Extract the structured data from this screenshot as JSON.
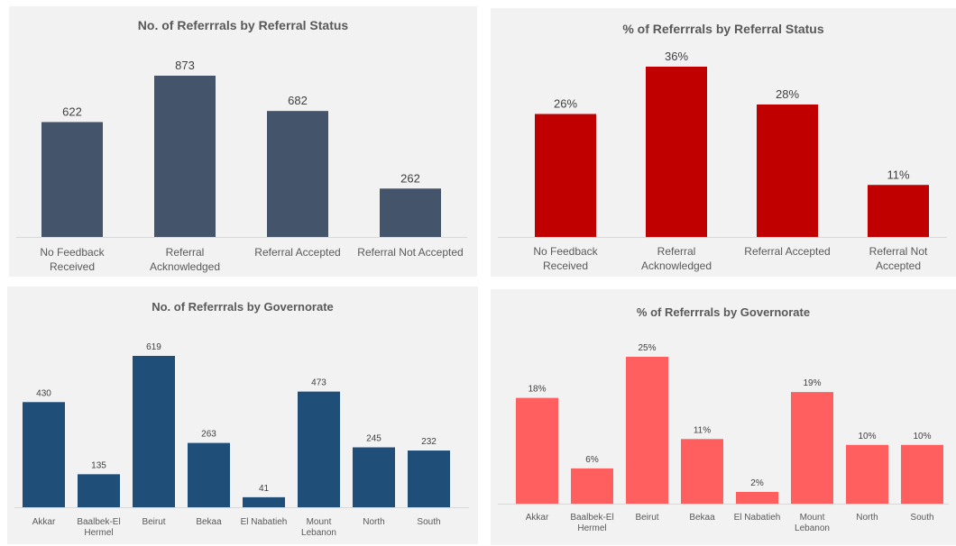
{
  "charts": [
    {
      "chart_data": {
        "type": "bar",
        "title": "No. of Referrrals by Referral Status",
        "categories": [
          [
            "No Feedback",
            "Received"
          ],
          [
            "Referral",
            "Acknowledged"
          ],
          [
            "Referral Accepted"
          ],
          [
            "Referral Not Accepted"
          ]
        ],
        "values": [
          622,
          873,
          682,
          262
        ],
        "labels": [
          "622",
          "873",
          "682",
          "262"
        ],
        "ylim": [
          0,
          873
        ]
      },
      "colors": {
        "bar": "#44546a"
      }
    },
    {
      "chart_data": {
        "type": "bar",
        "title": "% of Referrrals by Referral Status",
        "categories": [
          [
            "No Feedback",
            "Received"
          ],
          [
            "Referral",
            "Acknowledged"
          ],
          [
            "Referral Accepted"
          ],
          [
            "Referral Not",
            "Accepted"
          ]
        ],
        "values": [
          26,
          36,
          28,
          11
        ],
        "labels": [
          "26%",
          "36%",
          "28%",
          "11%"
        ],
        "ylim": [
          0,
          36
        ]
      },
      "colors": {
        "bar": "#c00000"
      }
    },
    {
      "chart_data": {
        "type": "bar",
        "title": "No. of Referrrals by Governorate",
        "categories": [
          [
            "Akkar"
          ],
          [
            "Baalbek-El",
            "Hermel"
          ],
          [
            "Beirut"
          ],
          [
            "Bekaa"
          ],
          [
            "El Nabatieh"
          ],
          [
            "Mount",
            "Lebanon"
          ],
          [
            "North"
          ],
          [
            "South"
          ]
        ],
        "values": [
          430,
          135,
          619,
          263,
          41,
          473,
          245,
          232
        ],
        "labels": [
          "430",
          "135",
          "619",
          "263",
          "41",
          "473",
          "245",
          "232"
        ],
        "ylim": [
          0,
          619
        ]
      },
      "colors": {
        "bar": "#1f4e79"
      }
    },
    {
      "chart_data": {
        "type": "bar",
        "title": "% of Referrrals by Governorate",
        "categories": [
          [
            "Akkar"
          ],
          [
            "Baalbek-El",
            "Hermel"
          ],
          [
            "Beirut"
          ],
          [
            "Bekaa"
          ],
          [
            "El Nabatieh"
          ],
          [
            "Mount",
            "Lebanon"
          ],
          [
            "North"
          ],
          [
            "South"
          ]
        ],
        "values": [
          18,
          6,
          25,
          11,
          2,
          19,
          10,
          10
        ],
        "labels": [
          "18%",
          "6%",
          "25%",
          "11%",
          "2%",
          "19%",
          "10%",
          "10%"
        ],
        "ylim": [
          0,
          25
        ]
      },
      "colors": {
        "bar": "#ff5f5f"
      }
    }
  ]
}
